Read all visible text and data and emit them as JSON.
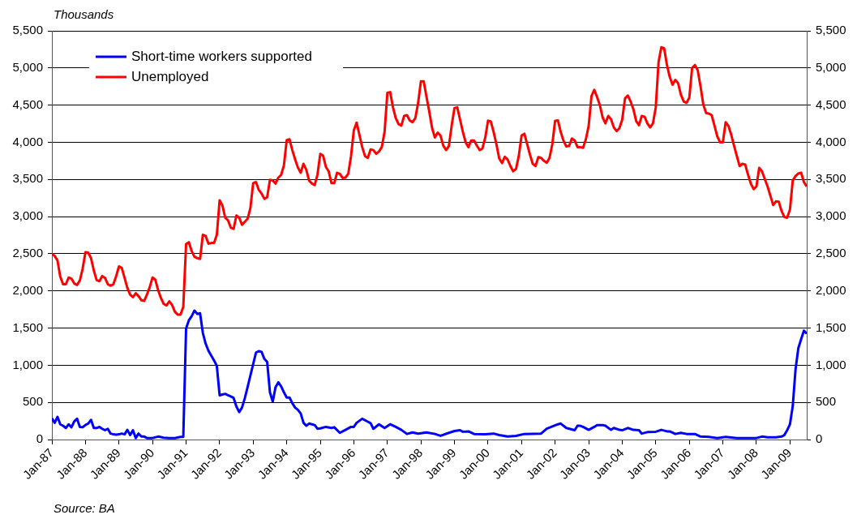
{
  "chart_data": {
    "type": "line",
    "ylabel": "Thousands",
    "annotations": [
      "Source: BA"
    ],
    "legend": "top left",
    "grid": "y",
    "marker": "none",
    "line_style": "solid",
    "xlim": [
      "1987-01",
      "2009-07"
    ],
    "xticks": [
      {
        "value": "1987-01",
        "label": "Jan-87"
      },
      {
        "value": "1988-01",
        "label": "Jan-88"
      },
      {
        "value": "1989-01",
        "label": "Jan-89"
      },
      {
        "value": "1990-01",
        "label": "Jan-90"
      },
      {
        "value": "1991-01",
        "label": "Jan-91"
      },
      {
        "value": "1992-01",
        "label": "Jan-92"
      },
      {
        "value": "1993-01",
        "label": "Jan-93"
      },
      {
        "value": "1994-01",
        "label": "Jan-94"
      },
      {
        "value": "1995-01",
        "label": "Jan-95"
      },
      {
        "value": "1996-01",
        "label": "Jan-96"
      },
      {
        "value": "1997-01",
        "label": "Jan-97"
      },
      {
        "value": "1998-01",
        "label": "Jan-98"
      },
      {
        "value": "1999-01",
        "label": "Jan-99"
      },
      {
        "value": "2000-01",
        "label": "Jan-00"
      },
      {
        "value": "2001-01",
        "label": "Jan-01"
      },
      {
        "value": "2002-01",
        "label": "Jan-02"
      },
      {
        "value": "2003-01",
        "label": "Jan-03"
      },
      {
        "value": "2004-01",
        "label": "Jan-04"
      },
      {
        "value": "2005-01",
        "label": "Jan-05"
      },
      {
        "value": "2006-01",
        "label": "Jan-06"
      },
      {
        "value": "2007-01",
        "label": "Jan-07"
      },
      {
        "value": "2008-01",
        "label": "Jan-08"
      },
      {
        "value": "2009-01",
        "label": "Jan-09"
      }
    ],
    "ylim": [
      0,
      5500
    ],
    "yticks": [
      0,
      500,
      {
        "value": 1000,
        "label": "1,000"
      },
      {
        "value": 1500,
        "label": "1,500"
      },
      {
        "value": 2000,
        "label": "2,000"
      },
      {
        "value": 2500,
        "label": "2,500"
      },
      {
        "value": 3000,
        "label": "3,000"
      },
      {
        "value": 3500,
        "label": "3,500"
      },
      {
        "value": 4000,
        "label": "4,000"
      },
      {
        "value": 4500,
        "label": "4,500"
      },
      {
        "value": 5000,
        "label": "5,000"
      },
      {
        "value": 5500,
        "label": "5,500"
      }
    ],
    "y2lim": [
      0,
      5500
    ],
    "y2ticks": [
      0,
      500,
      {
        "value": 1000,
        "label": "1,000"
      },
      {
        "value": 1500,
        "label": "1,500"
      },
      {
        "value": 2000,
        "label": "2,000"
      },
      {
        "value": 2500,
        "label": "2,500"
      },
      {
        "value": 3000,
        "label": "3,000"
      },
      {
        "value": 3500,
        "label": "3,500"
      },
      {
        "value": 4000,
        "label": "4,000"
      },
      {
        "value": 4500,
        "label": "4,500"
      },
      {
        "value": 5000,
        "label": "5,000"
      },
      {
        "value": 5500,
        "label": "5,500"
      }
    ],
    "series": [
      {
        "name": "Short-time workers supported",
        "color": "#0000ff",
        "x": [
          "1987-01",
          "1987-02",
          "1987-03",
          "1987-04",
          "1987-05",
          "1987-06",
          "1987-07",
          "1987-08",
          "1987-09",
          "1987-10",
          "1987-11",
          "1987-12",
          "1988-01",
          "1988-02",
          "1988-03",
          "1988-04",
          "1988-05",
          "1988-06",
          "1988-07",
          "1988-08",
          "1988-09",
          "1988-10",
          "1988-11",
          "1988-12",
          "1989-01",
          "1989-02",
          "1989-03",
          "1989-04",
          "1989-05",
          "1989-06",
          "1989-07",
          "1989-08",
          "1989-09",
          "1989-10",
          "1989-11",
          "1989-12",
          "1990-01",
          "1990-03",
          "1990-05",
          "1990-07",
          "1990-09",
          "1990-11",
          "1990-12",
          "1991-01",
          "1991-02",
          "1991-03",
          "1991-04",
          "1991-05",
          "1991-06",
          "1991-07",
          "1991-08",
          "1991-09",
          "1991-10",
          "1991-11",
          "1991-12",
          "1992-01",
          "1992-02",
          "1992-03",
          "1992-04",
          "1992-05",
          "1992-06",
          "1992-07",
          "1992-08",
          "1992-09",
          "1992-10",
          "1992-11",
          "1992-12",
          "1993-01",
          "1993-02",
          "1993-03",
          "1993-04",
          "1993-05",
          "1993-06",
          "1993-07",
          "1993-08",
          "1993-09",
          "1993-10",
          "1993-11",
          "1993-12",
          "1994-01",
          "1994-02",
          "1994-03",
          "1994-04",
          "1994-05",
          "1994-06",
          "1994-07",
          "1994-08",
          "1994-09",
          "1994-10",
          "1994-11",
          "1994-12",
          "1995-01",
          "1995-03",
          "1995-05",
          "1995-06",
          "1995-08",
          "1995-10",
          "1995-12",
          "1996-01",
          "1996-02",
          "1996-04",
          "1996-06",
          "1996-07",
          "1996-08",
          "1996-10",
          "1996-12",
          "1997-02",
          "1997-04",
          "1997-06",
          "1997-08",
          "1997-10",
          "1997-12",
          "1998-03",
          "1998-06",
          "1998-08",
          "1998-11",
          "1999-01",
          "1999-03",
          "1999-04",
          "1999-06",
          "1999-08",
          "1999-12",
          "2000-03",
          "2000-05",
          "2000-08",
          "2000-11",
          "2001-02",
          "2001-08",
          "2001-10",
          "2002-02",
          "2002-03",
          "2002-05",
          "2002-08",
          "2002-09",
          "2002-10",
          "2002-11",
          "2003-01",
          "2003-03",
          "2003-04",
          "2003-06",
          "2003-07",
          "2003-09",
          "2003-10",
          "2003-12",
          "2004-01",
          "2004-03",
          "2004-05",
          "2004-07",
          "2004-08",
          "2004-10",
          "2005-01",
          "2005-03",
          "2005-05",
          "2005-06",
          "2005-08",
          "2005-10",
          "2005-12",
          "2006-03",
          "2006-05",
          "2006-08",
          "2006-11",
          "2007-02",
          "2007-06",
          "2007-09",
          "2008-01",
          "2008-03",
          "2008-05",
          "2008-08",
          "2008-10",
          "2008-11",
          "2008-12",
          "2009-01",
          "2009-02",
          "2009-03",
          "2009-04",
          "2009-05",
          "2009-06",
          "2009-07"
        ],
        "values": [
          285,
          225,
          305,
          205,
          185,
          155,
          205,
          165,
          245,
          280,
          170,
          165,
          195,
          215,
          265,
          155,
          155,
          170,
          145,
          125,
          145,
          80,
          70,
          65,
          70,
          80,
          70,
          130,
          60,
          125,
          20,
          80,
          40,
          40,
          20,
          20,
          20,
          40,
          25,
          20,
          20,
          35,
          35,
          1495,
          1605,
          1660,
          1735,
          1690,
          1700,
          1435,
          1290,
          1195,
          1130,
          1065,
          990,
          595,
          605,
          615,
          595,
          580,
          560,
          445,
          370,
          430,
          555,
          705,
          860,
          1015,
          1170,
          1190,
          1180,
          1085,
          1045,
          635,
          510,
          705,
          770,
          715,
          635,
          565,
          565,
          490,
          430,
          400,
          350,
          225,
          185,
          215,
          205,
          195,
          145,
          150,
          170,
          155,
          165,
          90,
          130,
          170,
          170,
          225,
          280,
          240,
          220,
          145,
          205,
          155,
          205,
          170,
          130,
          75,
          95,
          80,
          95,
          75,
          50,
          90,
          115,
          125,
          105,
          110,
          75,
          70,
          80,
          60,
          40,
          50,
          75,
          80,
          145,
          205,
          215,
          155,
          125,
          185,
          185,
          170,
          130,
          170,
          195,
          195,
          185,
          130,
          155,
          130,
          125,
          155,
          130,
          125,
          80,
          100,
          105,
          130,
          110,
          110,
          75,
          90,
          75,
          75,
          40,
          35,
          20,
          35,
          20,
          20,
          20,
          40,
          30,
          30,
          40,
          60,
          125,
          205,
          450,
          945,
          1230,
          1350,
          1465,
          1425
        ]
      },
      {
        "name": "Unemployed",
        "color": "#ff0000",
        "x": [
          "1987-01",
          "1987-02",
          "1987-03",
          "1987-04",
          "1987-05",
          "1987-06",
          "1987-07",
          "1987-08",
          "1987-09",
          "1987-10",
          "1987-11",
          "1987-12",
          "1988-01",
          "1988-02",
          "1988-03",
          "1988-04",
          "1988-05",
          "1988-06",
          "1988-07",
          "1988-08",
          "1988-09",
          "1988-10",
          "1988-11",
          "1988-12",
          "1989-01",
          "1989-02",
          "1989-03",
          "1989-04",
          "1989-05",
          "1989-06",
          "1989-07",
          "1989-08",
          "1989-09",
          "1989-10",
          "1989-11",
          "1989-12",
          "1990-01",
          "1990-02",
          "1990-03",
          "1990-04",
          "1990-05",
          "1990-06",
          "1990-07",
          "1990-08",
          "1990-09",
          "1990-10",
          "1990-11",
          "1990-12",
          "1991-01",
          "1991-02",
          "1991-03",
          "1991-04",
          "1991-05",
          "1991-06",
          "1991-07",
          "1991-08",
          "1991-09",
          "1991-10",
          "1991-11",
          "1991-12",
          "1992-01",
          "1992-02",
          "1992-03",
          "1992-04",
          "1992-05",
          "1992-06",
          "1992-07",
          "1992-08",
          "1992-09",
          "1992-10",
          "1992-11",
          "1992-12",
          "1993-01",
          "1993-02",
          "1993-03",
          "1993-04",
          "1993-05",
          "1993-06",
          "1993-07",
          "1993-08",
          "1993-09",
          "1993-10",
          "1993-11",
          "1993-12",
          "1994-01",
          "1994-02",
          "1994-03",
          "1994-04",
          "1994-05",
          "1994-06",
          "1994-07",
          "1994-08",
          "1994-09",
          "1994-10",
          "1994-11",
          "1994-12",
          "1995-01",
          "1995-02",
          "1995-03",
          "1995-04",
          "1995-05",
          "1995-06",
          "1995-07",
          "1995-08",
          "1995-09",
          "1995-10",
          "1995-11",
          "1995-12",
          "1996-01",
          "1996-02",
          "1996-03",
          "1996-04",
          "1996-05",
          "1996-06",
          "1996-07",
          "1996-08",
          "1996-09",
          "1996-10",
          "1996-11",
          "1996-12",
          "1997-01",
          "1997-02",
          "1997-03",
          "1997-04",
          "1997-05",
          "1997-06",
          "1997-07",
          "1997-08",
          "1997-09",
          "1997-10",
          "1997-11",
          "1997-12",
          "1998-01",
          "1998-02",
          "1998-03",
          "1998-04",
          "1998-05",
          "1998-06",
          "1998-07",
          "1998-08",
          "1998-09",
          "1998-10",
          "1998-11",
          "1998-12",
          "1999-01",
          "1999-02",
          "1999-03",
          "1999-04",
          "1999-05",
          "1999-06",
          "1999-07",
          "1999-08",
          "1999-09",
          "1999-10",
          "1999-11",
          "1999-12",
          "2000-01",
          "2000-02",
          "2000-03",
          "2000-04",
          "2000-05",
          "2000-06",
          "2000-07",
          "2000-08",
          "2000-09",
          "2000-10",
          "2000-11",
          "2000-12",
          "2001-01",
          "2001-02",
          "2001-03",
          "2001-04",
          "2001-05",
          "2001-06",
          "2001-07",
          "2001-08",
          "2001-09",
          "2001-10",
          "2001-11",
          "2001-12",
          "2002-01",
          "2002-02",
          "2002-03",
          "2002-04",
          "2002-05",
          "2002-06",
          "2002-07",
          "2002-08",
          "2002-09",
          "2002-10",
          "2002-11",
          "2002-12",
          "2003-01",
          "2003-02",
          "2003-03",
          "2003-04",
          "2003-05",
          "2003-06",
          "2003-07",
          "2003-08",
          "2003-09",
          "2003-10",
          "2003-11",
          "2003-12",
          "2004-01",
          "2004-02",
          "2004-03",
          "2004-04",
          "2004-05",
          "2004-06",
          "2004-07",
          "2004-08",
          "2004-09",
          "2004-10",
          "2004-11",
          "2004-12",
          "2005-01",
          "2005-02",
          "2005-03",
          "2005-04",
          "2005-05",
          "2005-06",
          "2005-07",
          "2005-08",
          "2005-09",
          "2005-10",
          "2005-11",
          "2005-12",
          "2006-01",
          "2006-02",
          "2006-03",
          "2006-04",
          "2006-05",
          "2006-06",
          "2006-07",
          "2006-08",
          "2006-09",
          "2006-10",
          "2006-11",
          "2006-12",
          "2007-01",
          "2007-02",
          "2007-03",
          "2007-04",
          "2007-05",
          "2007-06",
          "2007-07",
          "2007-08",
          "2007-09",
          "2007-10",
          "2007-11",
          "2007-12",
          "2008-01",
          "2008-02",
          "2008-03",
          "2008-04",
          "2008-05",
          "2008-06",
          "2008-07",
          "2008-08",
          "2008-09",
          "2008-10",
          "2008-11",
          "2008-12",
          "2009-01",
          "2009-02",
          "2009-03",
          "2009-04",
          "2009-05",
          "2009-06",
          "2009-07"
        ],
        "values": [
          2500,
          2470,
          2410,
          2190,
          2090,
          2090,
          2180,
          2165,
          2100,
          2080,
          2140,
          2300,
          2520,
          2515,
          2440,
          2275,
          2145,
          2130,
          2200,
          2175,
          2090,
          2070,
          2090,
          2200,
          2330,
          2310,
          2175,
          2040,
          1950,
          1915,
          1970,
          1930,
          1875,
          1865,
          1950,
          2050,
          2180,
          2150,
          2010,
          1905,
          1825,
          1805,
          1860,
          1810,
          1720,
          1680,
          1680,
          1785,
          2630,
          2655,
          2535,
          2460,
          2440,
          2430,
          2755,
          2740,
          2635,
          2645,
          2645,
          2755,
          3220,
          3150,
          2985,
          2950,
          2850,
          2835,
          3015,
          2985,
          2890,
          2930,
          2970,
          3115,
          3450,
          3465,
          3360,
          3310,
          3240,
          3260,
          3495,
          3485,
          3445,
          3525,
          3560,
          3690,
          4030,
          4040,
          3895,
          3770,
          3660,
          3590,
          3710,
          3630,
          3485,
          3445,
          3425,
          3565,
          3845,
          3820,
          3670,
          3610,
          3450,
          3450,
          3590,
          3575,
          3520,
          3525,
          3575,
          3815,
          4160,
          4265,
          4100,
          3935,
          3815,
          3790,
          3905,
          3895,
          3845,
          3875,
          3935,
          4140,
          4665,
          4675,
          4470,
          4325,
          4245,
          4225,
          4355,
          4365,
          4295,
          4270,
          4325,
          4530,
          4820,
          4820,
          4610,
          4410,
          4190,
          4065,
          4130,
          4090,
          3955,
          3895,
          3950,
          4225,
          4460,
          4470,
          4305,
          4140,
          4000,
          3935,
          4025,
          4025,
          3955,
          3895,
          3915,
          4060,
          4290,
          4280,
          4140,
          3975,
          3785,
          3720,
          3805,
          3770,
          3680,
          3610,
          3640,
          3815,
          4090,
          4115,
          3975,
          3835,
          3710,
          3680,
          3800,
          3790,
          3750,
          3725,
          3790,
          3975,
          4290,
          4295,
          4140,
          4020,
          3945,
          3950,
          4050,
          4025,
          3935,
          3935,
          3925,
          4040,
          4220,
          4620,
          4705,
          4610,
          4500,
          4335,
          4255,
          4355,
          4310,
          4200,
          4150,
          4190,
          4305,
          4590,
          4630,
          4550,
          4445,
          4285,
          4230,
          4355,
          4345,
          4255,
          4200,
          4255,
          4470,
          5080,
          5280,
          5265,
          5040,
          4880,
          4775,
          4840,
          4795,
          4640,
          4550,
          4530,
          4600,
          5000,
          5040,
          4970,
          4755,
          4510,
          4395,
          4385,
          4365,
          4225,
          4080,
          4000,
          4000,
          4270,
          4220,
          4100,
          3955,
          3815,
          3680,
          3710,
          3700,
          3565,
          3445,
          3370,
          3405,
          3655,
          3610,
          3505,
          3405,
          3280,
          3155,
          3205,
          3200,
          3075,
          2995,
          2985,
          3095,
          3485,
          3545,
          3580,
          3590,
          3465,
          3405
        ]
      }
    ]
  }
}
